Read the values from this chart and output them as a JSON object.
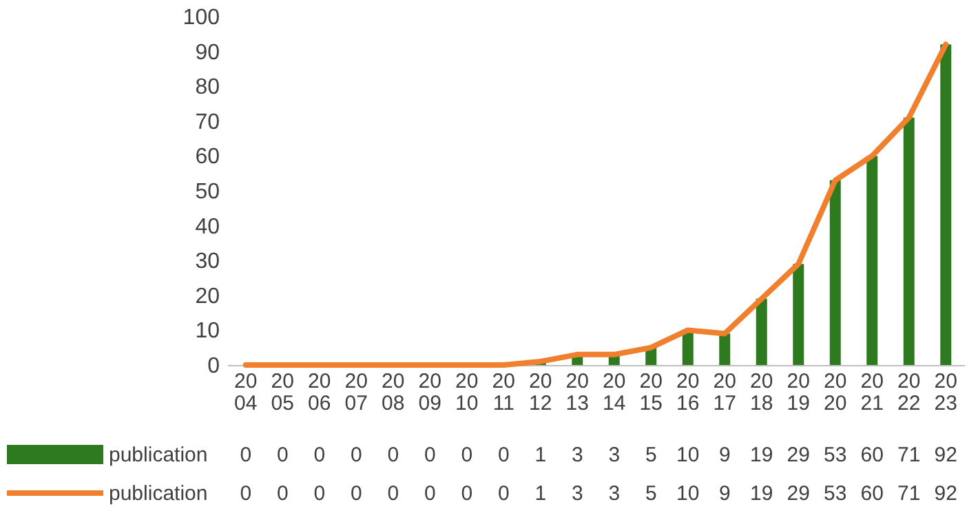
{
  "chart_data": {
    "type": "bar",
    "categories": [
      "2004",
      "2005",
      "2006",
      "2007",
      "2008",
      "2009",
      "2010",
      "2011",
      "2012",
      "2013",
      "2014",
      "2015",
      "2016",
      "2017",
      "2018",
      "2019",
      "2020",
      "2021",
      "2022",
      "2023"
    ],
    "series": [
      {
        "name": "publication",
        "type": "bar",
        "color": "#2e7a1e",
        "values": [
          0,
          0,
          0,
          0,
          0,
          0,
          0,
          0,
          1,
          3,
          3,
          5,
          10,
          9,
          19,
          29,
          53,
          60,
          71,
          92
        ]
      },
      {
        "name": "publication",
        "type": "line",
        "color": "#f07f2e",
        "values": [
          0,
          0,
          0,
          0,
          0,
          0,
          0,
          0,
          1,
          3,
          3,
          5,
          10,
          9,
          19,
          29,
          53,
          60,
          71,
          92
        ]
      }
    ],
    "ylim": [
      0,
      100
    ],
    "yticks": [
      0,
      10,
      20,
      30,
      40,
      50,
      60,
      70,
      80,
      90,
      100
    ],
    "grid": false,
    "legend": "bottom left",
    "data_labels": true
  }
}
